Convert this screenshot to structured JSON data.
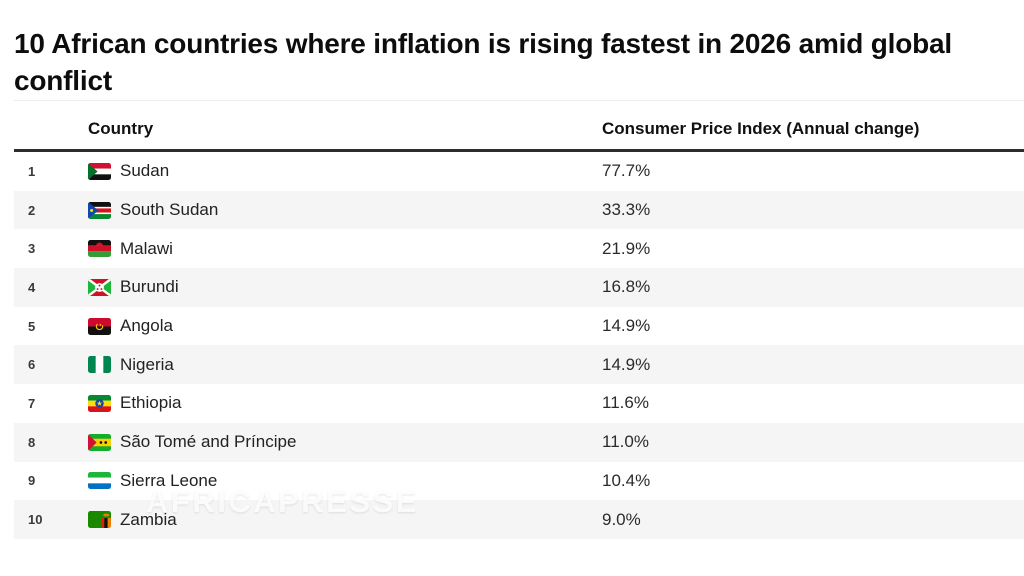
{
  "page": {
    "title": "10 African countries where inflation is rising fastest in 2026 amid global conflict"
  },
  "table": {
    "columns": {
      "country": "Country",
      "value": "Consumer Price Index (Annual change)"
    },
    "rows": [
      {
        "rank": "1",
        "flag": "sudan",
        "country": "Sudan",
        "value": "77.7%"
      },
      {
        "rank": "2",
        "flag": "south-sudan",
        "country": "South Sudan",
        "value": "33.3%"
      },
      {
        "rank": "3",
        "flag": "malawi",
        "country": "Malawi",
        "value": "21.9%"
      },
      {
        "rank": "4",
        "flag": "burundi",
        "country": "Burundi",
        "value": "16.8%"
      },
      {
        "rank": "5",
        "flag": "angola",
        "country": "Angola",
        "value": "14.9%"
      },
      {
        "rank": "6",
        "flag": "nigeria",
        "country": "Nigeria",
        "value": "14.9%"
      },
      {
        "rank": "7",
        "flag": "ethiopia",
        "country": "Ethiopia",
        "value": "11.6%"
      },
      {
        "rank": "8",
        "flag": "sao-tome",
        "country": "São Tomé and Príncipe",
        "value": "11.0%"
      },
      {
        "rank": "9",
        "flag": "sierra-leone",
        "country": "Sierra Leone",
        "value": "10.4%"
      },
      {
        "rank": "10",
        "flag": "zambia",
        "country": "Zambia",
        "value": "9.0%"
      }
    ]
  },
  "watermark": {
    "text": "AFRICAPRESSE"
  },
  "colors": {
    "stripe": "#f5f5f6",
    "header_rule": "#2d2d2d",
    "title_text": "#0d0d0d",
    "body_text": "#222222"
  },
  "chart_data": {
    "type": "table",
    "title": "10 African countries where inflation is rising fastest in 2026 amid global conflict",
    "columns": [
      "Country",
      "Consumer Price Index (Annual change)"
    ],
    "categories": [
      "Sudan",
      "South Sudan",
      "Malawi",
      "Burundi",
      "Angola",
      "Nigeria",
      "Ethiopia",
      "São Tomé and Príncipe",
      "Sierra Leone",
      "Zambia"
    ],
    "values": [
      77.7,
      33.3,
      21.9,
      16.8,
      14.9,
      14.9,
      11.6,
      11.0,
      10.4,
      9.0
    ],
    "unit": "%",
    "layout": "ranked-table, zebra stripes, values as annual CPI change"
  }
}
